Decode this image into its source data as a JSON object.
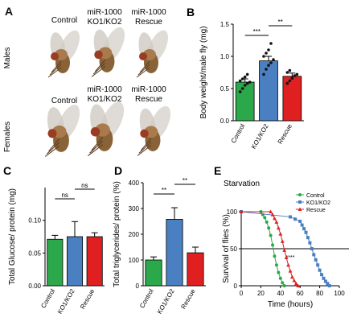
{
  "panel_a": {
    "letter": "A",
    "column_labels": [
      "Control",
      "miR-1000\nKO1/KO2",
      "miR-1000\nRescue"
    ],
    "column_labels_lines": [
      [
        "Control"
      ],
      [
        "miR-1000",
        "KO1/KO2"
      ],
      [
        "miR-1000",
        "Rescue"
      ]
    ],
    "female_column_labels_lines": [
      [
        "Control"
      ],
      [
        "miR-1000",
        "KO1/KO2"
      ],
      [
        "miR-1000",
        "Rescue"
      ]
    ],
    "row_labels": [
      "Males",
      "Females"
    ]
  },
  "colors": {
    "control": "#2aa84a",
    "ko": "#4a7fc1",
    "rescue": "#e02020"
  },
  "chart_data": [
    {
      "panel": "B",
      "type": "bar",
      "categories": [
        "Control",
        "KO1/KO2",
        "Rescue"
      ],
      "values": [
        0.6,
        0.93,
        0.69
      ],
      "errors": [
        0.05,
        0.07,
        0.05
      ],
      "points": [
        [
          0.45,
          0.5,
          0.55,
          0.58,
          0.6,
          0.62,
          0.65,
          0.68,
          0.72
        ],
        [
          0.72,
          0.8,
          0.86,
          0.9,
          0.95,
          1.0,
          1.05,
          1.1,
          1.2
        ],
        [
          0.58,
          0.62,
          0.66,
          0.7,
          0.72,
          0.75,
          0.78
        ]
      ],
      "ylabel": "Body weight/male fly (mg)",
      "ylim": [
        0,
        1.5
      ],
      "yticks": [
        "0.0",
        "0.5",
        "1.0",
        "1.5"
      ],
      "significance": [
        {
          "from": 0,
          "to": 1,
          "label": "***"
        },
        {
          "from": 1,
          "to": 2,
          "label": "**"
        }
      ]
    },
    {
      "panel": "C",
      "type": "bar",
      "categories": [
        "Control",
        "KO1/KO2",
        "Rescue"
      ],
      "values": [
        0.071,
        0.075,
        0.075
      ],
      "errors": [
        0.006,
        0.023,
        0.006
      ],
      "ylabel": "Total Glucose/ protein (mg)",
      "ylim": [
        0,
        0.15
      ],
      "yticks": [
        "0.00",
        "0.05",
        "0.10"
      ],
      "significance": [
        {
          "from": 0,
          "to": 1,
          "label": "ns"
        },
        {
          "from": 1,
          "to": 2,
          "label": "ns"
        }
      ]
    },
    {
      "panel": "D",
      "type": "bar",
      "categories": [
        "Control",
        "KO1/KO2",
        "Rescue"
      ],
      "values": [
        100,
        258,
        128
      ],
      "errors": [
        12,
        45,
        22
      ],
      "ylabel": "Total triglycerides/ protein (%)",
      "ylim": [
        0,
        400
      ],
      "yticks": [
        "0",
        "100",
        "200",
        "300",
        "400"
      ],
      "significance": [
        {
          "from": 0,
          "to": 1,
          "label": "**"
        },
        {
          "from": 1,
          "to": 2,
          "label": "**"
        }
      ]
    },
    {
      "panel": "E",
      "type": "line",
      "title": "Starvation",
      "xlabel": "Time (hours)",
      "ylabel": "Survival of flies (%)",
      "xlim": [
        0,
        100
      ],
      "ylim": [
        0,
        100
      ],
      "xticks": [
        "0",
        "20",
        "40",
        "60",
        "80",
        "100"
      ],
      "yticks": [
        "0",
        "50",
        "100"
      ],
      "reference_line_y": 50,
      "annotation": "****",
      "series": [
        {
          "name": "Control",
          "marker": "circle",
          "x": [
            0,
            20,
            22,
            24,
            26,
            28,
            30,
            32,
            34,
            36,
            38,
            40,
            42,
            44
          ],
          "y": [
            100,
            100,
            96,
            92,
            86,
            78,
            68,
            55,
            40,
            28,
            18,
            10,
            4,
            0
          ]
        },
        {
          "name": "KO1/KO2",
          "marker": "square",
          "x": [
            0,
            50,
            55,
            60,
            62,
            64,
            66,
            68,
            70,
            72,
            74,
            76,
            78,
            80,
            82,
            84,
            86,
            88,
            90
          ],
          "y": [
            100,
            93,
            90,
            87,
            82,
            77,
            72,
            65,
            58,
            50,
            42,
            35,
            28,
            21,
            15,
            10,
            6,
            3,
            0
          ]
        },
        {
          "name": "Rescue",
          "marker": "triangle",
          "x": [
            0,
            30,
            32,
            34,
            36,
            38,
            40,
            42,
            44,
            46,
            48,
            50,
            52,
            54,
            56,
            58
          ],
          "y": [
            100,
            100,
            96,
            91,
            86,
            78,
            70,
            60,
            48,
            38,
            28,
            20,
            12,
            7,
            3,
            0
          ]
        }
      ]
    }
  ]
}
